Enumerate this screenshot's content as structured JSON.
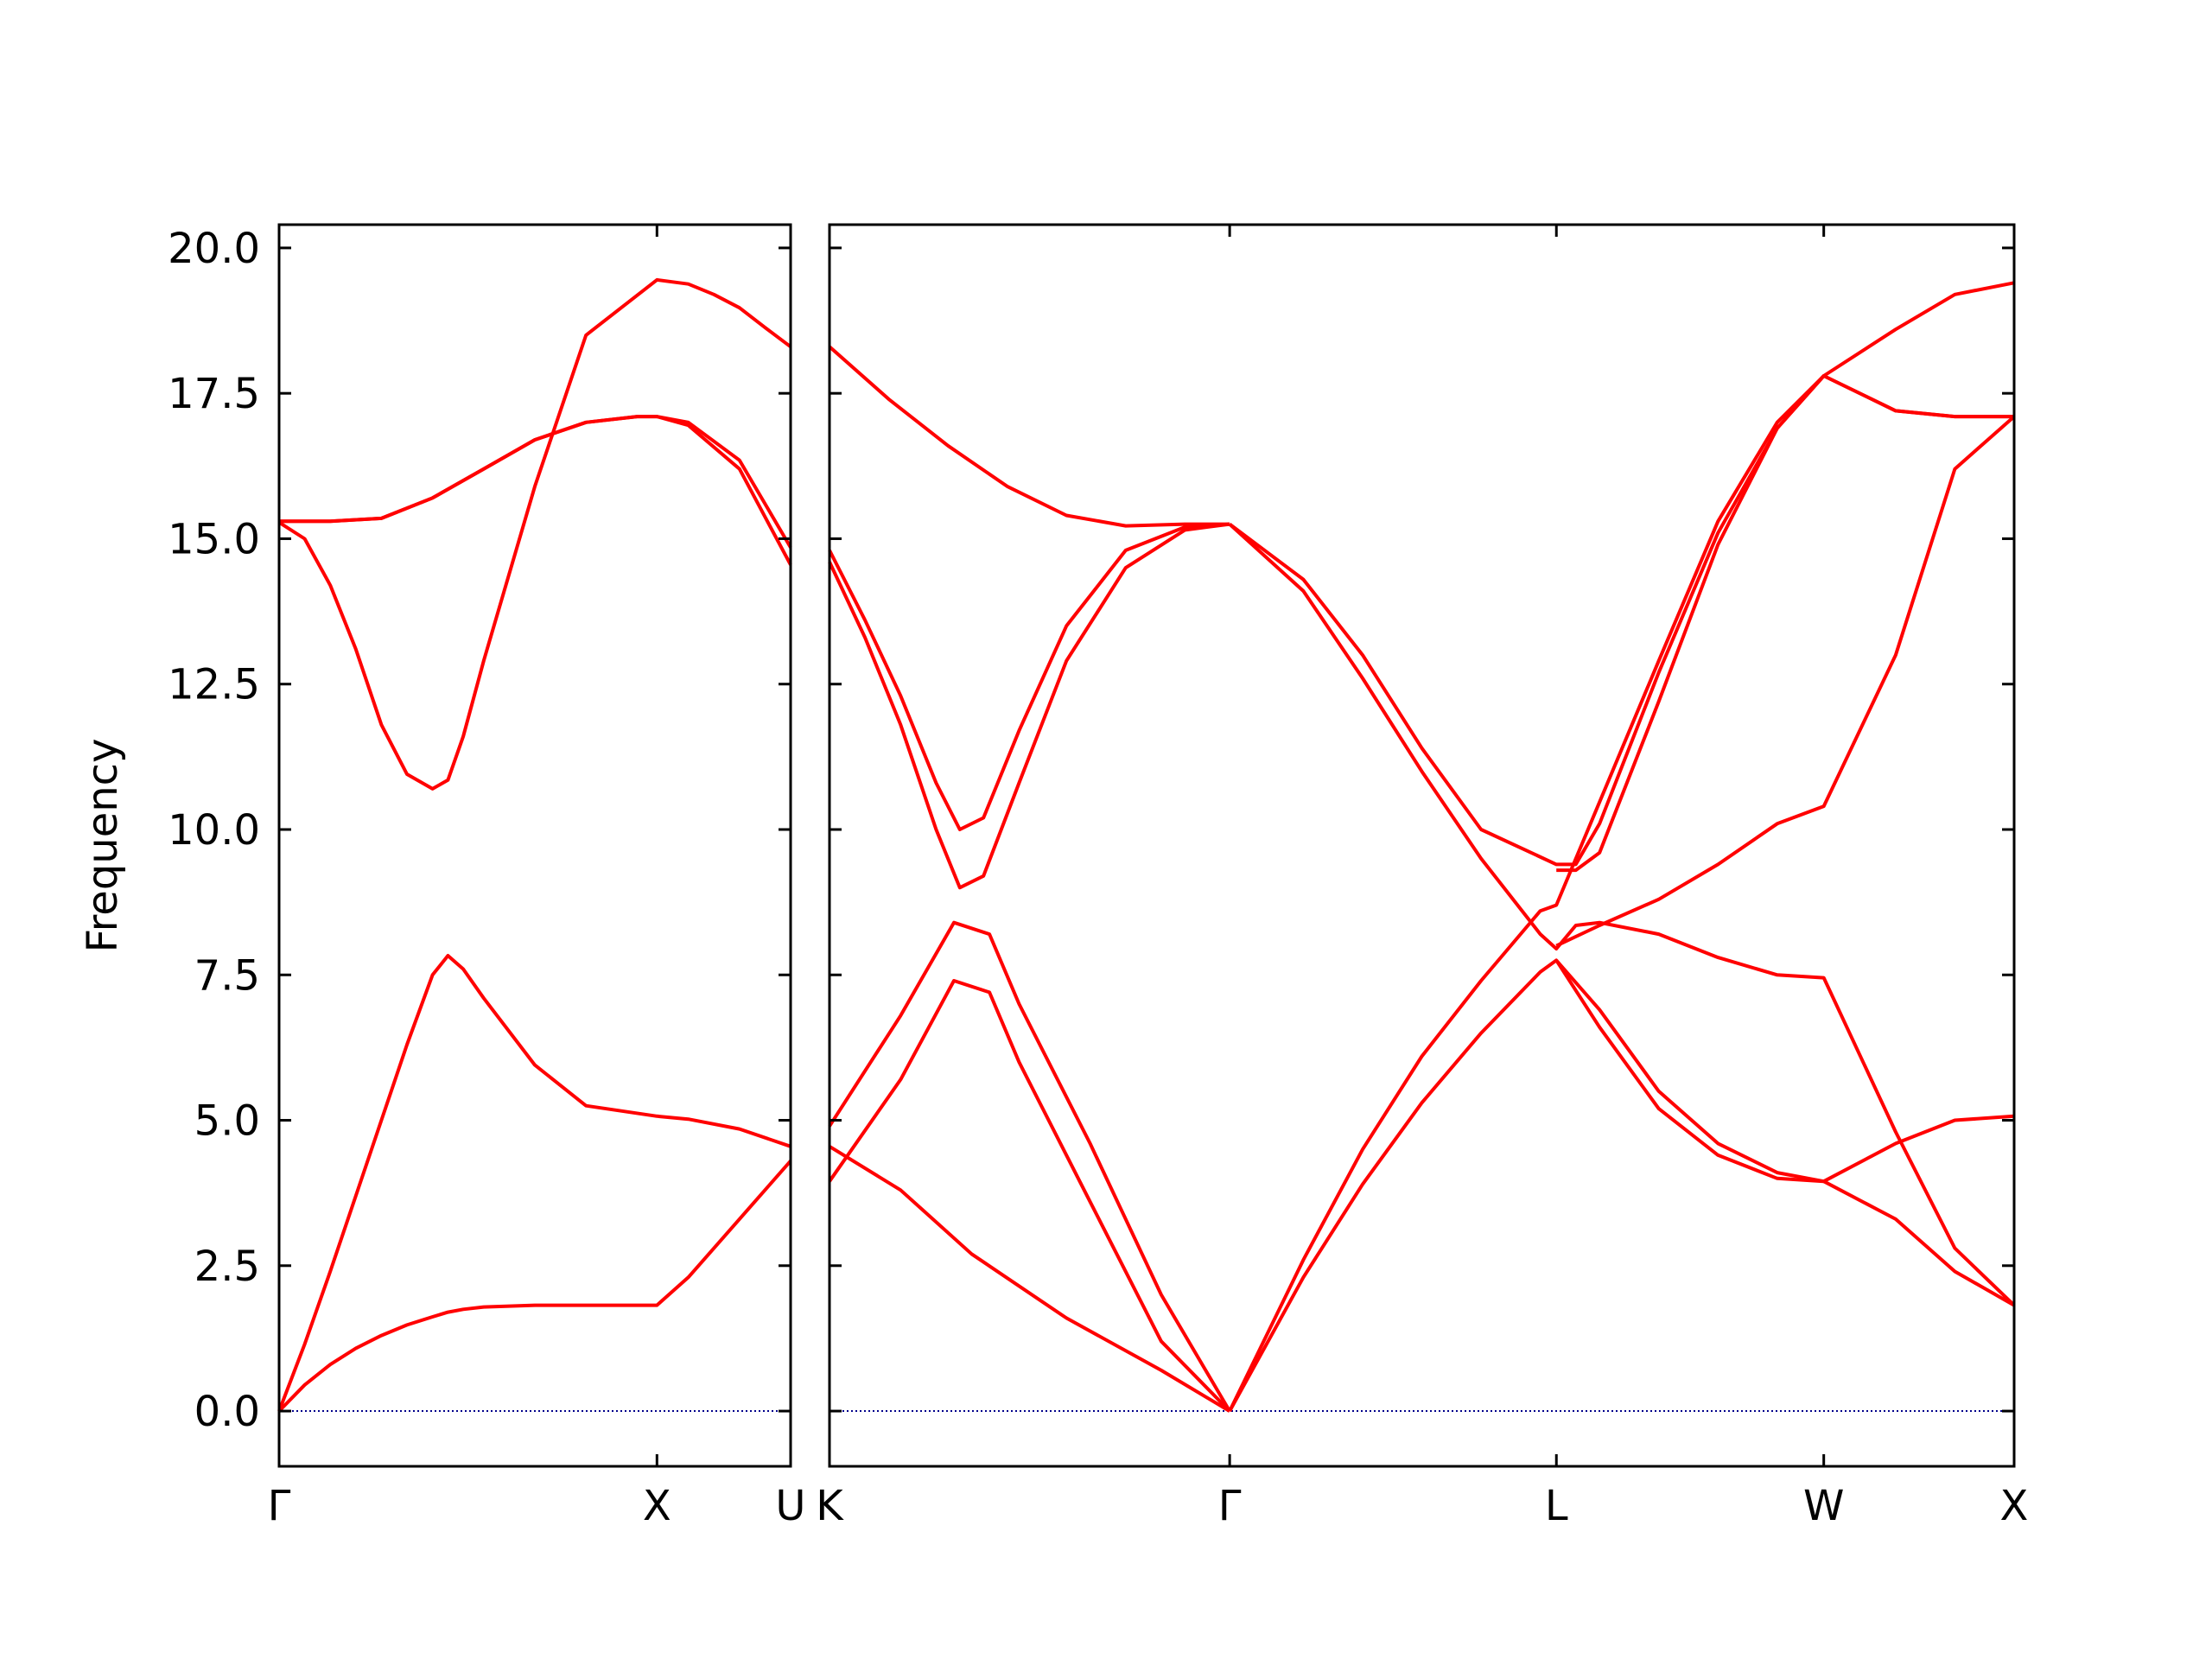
{
  "chart_data": {
    "type": "line",
    "ylabel": "Frequency",
    "ylim": [
      -0.95,
      20.4
    ],
    "yticks": [
      "0.0",
      "2.5",
      "5.0",
      "7.5",
      "10.0",
      "12.5",
      "15.0",
      "17.5",
      "20.0"
    ],
    "ytick_values": [
      0,
      2.5,
      5,
      7.5,
      10,
      12.5,
      15,
      17.5,
      20
    ],
    "grid": false,
    "colors": {
      "band": "#ff0000",
      "zero_line": "#00008b",
      "axes": "#000000"
    },
    "panels": [
      {
        "name": "left",
        "xticks": [
          "Γ",
          "X",
          "U"
        ],
        "xtick_positions": [
          0,
          0.7387,
          1.0
        ],
        "series": [
          {
            "x": [
              0,
              0.05,
              0.1,
              0.15,
              0.2,
              0.25,
              0.3,
              0.33,
              0.36,
              0.4,
              0.5,
              0.6,
              0.7387,
              0.8,
              0.9,
              1.0
            ],
            "y": [
              0,
              0.45,
              0.8,
              1.08,
              1.3,
              1.48,
              1.62,
              1.7,
              1.75,
              1.79,
              1.82,
              1.82,
              1.82,
              2.3,
              3.3,
              4.3
            ]
          },
          {
            "x": [
              0,
              0.05,
              0.1,
              0.15,
              0.2,
              0.25,
              0.3,
              0.33,
              0.36,
              0.4,
              0.5,
              0.6,
              0.7387,
              0.8,
              0.9,
              1.0
            ],
            "y": [
              0,
              1.15,
              2.4,
              3.7,
              5.0,
              6.3,
              7.5,
              7.83,
              7.6,
              7.1,
              5.95,
              5.25,
              5.07,
              5.02,
              4.85,
              4.55
            ]
          },
          {
            "x": [
              0,
              0.05,
              0.1,
              0.15,
              0.2,
              0.25,
              0.3,
              0.33,
              0.36,
              0.4,
              0.5,
              0.6,
              0.7387,
              0.8,
              0.85,
              0.9,
              0.95,
              1.0
            ],
            "y": [
              15.28,
              15.0,
              14.2,
              13.1,
              11.8,
              10.95,
              10.7,
              10.85,
              11.6,
              12.9,
              15.9,
              18.5,
              19.45,
              19.38,
              19.2,
              18.97,
              18.63,
              18.3
            ]
          },
          {
            "x": [
              0,
              0.1,
              0.2,
              0.3,
              0.4,
              0.5,
              0.6,
              0.7,
              0.7387,
              0.8,
              0.9,
              1.0
            ],
            "y": [
              15.3,
              15.3,
              15.35,
              15.7,
              16.2,
              16.7,
              17.0,
              17.1,
              17.1,
              16.95,
              16.2,
              14.55
            ]
          },
          {
            "x": [
              0,
              0.1,
              0.2,
              0.3,
              0.4,
              0.5,
              0.6,
              0.7,
              0.7387,
              0.8,
              0.9,
              1.0
            ],
            "y": [
              15.3,
              15.3,
              15.35,
              15.7,
              16.2,
              16.7,
              17.0,
              17.1,
              17.1,
              17.0,
              16.35,
              14.85
            ]
          }
        ]
      },
      {
        "name": "right",
        "xticks": [
          "K",
          "Γ",
          "L",
          "W",
          "X"
        ],
        "xtick_positions": [
          0,
          0.3378,
          0.6136,
          0.8393,
          1.0
        ],
        "series": [
          {
            "x": [
              0,
              0.06,
              0.12,
              0.2,
              0.28,
              0.3378
            ],
            "y": [
              4.55,
              3.8,
              2.7,
              1.6,
              0.7,
              0
            ]
          },
          {
            "x": [
              0,
              0.06,
              0.105,
              0.135,
              0.16,
              0.22,
              0.28,
              0.3378
            ],
            "y": [
              3.95,
              5.7,
              7.4,
              7.2,
              6.0,
              3.6,
              1.2,
              0
            ]
          },
          {
            "x": [
              0,
              0.06,
              0.105,
              0.135,
              0.16,
              0.22,
              0.28,
              0.3378
            ],
            "y": [
              4.9,
              6.8,
              8.4,
              8.2,
              7.0,
              4.6,
              2.0,
              0
            ]
          },
          {
            "x": [
              0,
              0.03,
              0.06,
              0.09,
              0.11,
              0.13,
              0.16,
              0.2,
              0.25,
              0.3,
              0.3378
            ],
            "y": [
              14.6,
              13.3,
              11.8,
              10.0,
              9.0,
              9.2,
              10.8,
              12.9,
              14.5,
              15.15,
              15.25
            ]
          },
          {
            "x": [
              0,
              0.03,
              0.06,
              0.09,
              0.11,
              0.13,
              0.16,
              0.2,
              0.25,
              0.3,
              0.3378
            ],
            "y": [
              14.8,
              13.6,
              12.3,
              10.8,
              10.0,
              10.2,
              11.7,
              13.5,
              14.8,
              15.2,
              15.25
            ]
          },
          {
            "x": [
              0,
              0.05,
              0.1,
              0.15,
              0.2,
              0.25,
              0.3,
              0.3378
            ],
            "y": [
              18.3,
              17.4,
              16.6,
              15.9,
              15.4,
              15.22,
              15.25,
              15.25
            ]
          },
          {
            "x": [
              0.3378,
              0.4,
              0.45,
              0.5,
              0.55,
              0.6,
              0.6136,
              0.7,
              0.75,
              0.8,
              0.8393,
              0.9,
              0.95,
              1.0
            ],
            "y": [
              0,
              2.6,
              4.5,
              6.1,
              7.4,
              8.6,
              8.7,
              12.9,
              15.3,
              17.0,
              17.8,
              18.6,
              19.2,
              19.4
            ]
          },
          {
            "x": [
              0.3378,
              0.4,
              0.45,
              0.5,
              0.55,
              0.6,
              0.6136,
              0.65,
              0.7,
              0.75,
              0.8,
              0.8393,
              0.9,
              0.95,
              1.0
            ],
            "y": [
              0,
              2.3,
              3.9,
              5.3,
              6.5,
              7.55,
              7.75,
              6.9,
              5.5,
              4.6,
              4.1,
              3.95,
              3.3,
              2.4,
              1.82
            ]
          },
          {
            "x": [
              0.3378,
              0.4,
              0.45,
              0.5,
              0.55,
              0.6136,
              0.63,
              0.65,
              0.7,
              0.75,
              0.8,
              0.8393,
              0.9,
              0.95,
              1.0
            ],
            "y": [
              15.25,
              14.3,
              13.0,
              11.4,
              10.0,
              9.4,
              9.4,
              10.1,
              12.7,
              15.1,
              16.9,
              17.8,
              17.2,
              17.1,
              17.1
            ]
          },
          {
            "x": [
              0.3378,
              0.4,
              0.45,
              0.5,
              0.55,
              0.6,
              0.6136,
              0.63,
              0.65,
              0.7,
              0.75,
              0.8,
              0.8393,
              0.9,
              0.95,
              1.0
            ],
            "y": [
              15.25,
              14.1,
              12.6,
              11.0,
              9.5,
              8.2,
              7.95,
              8.35,
              8.4,
              8.2,
              7.8,
              7.5,
              7.45,
              4.8,
              2.8,
              1.82
            ]
          },
          {
            "x": [
              0.6136,
              0.63,
              0.65,
              0.7,
              0.75,
              0.8,
              0.8393,
              0.9,
              0.95,
              1.0
            ],
            "y": [
              9.3,
              9.3,
              9.6,
              12.2,
              14.9,
              16.9,
              17.8,
              17.2,
              17.1,
              17.1
            ]
          },
          {
            "x": [
              0.6136,
              0.65,
              0.7,
              0.75,
              0.8,
              0.8393,
              0.9,
              0.95,
              1.0
            ],
            "y": [
              7.75,
              6.6,
              5.2,
              4.4,
              4.0,
              3.95,
              4.6,
              5.0,
              5.07
            ]
          },
          {
            "x": [
              0.6136,
              0.65,
              0.7,
              0.75,
              0.8,
              0.8393,
              0.9,
              0.95,
              1.0
            ],
            "y": [
              8.0,
              8.35,
              8.8,
              9.4,
              10.1,
              10.4,
              13.0,
              16.2,
              17.1
            ]
          }
        ]
      }
    ]
  }
}
